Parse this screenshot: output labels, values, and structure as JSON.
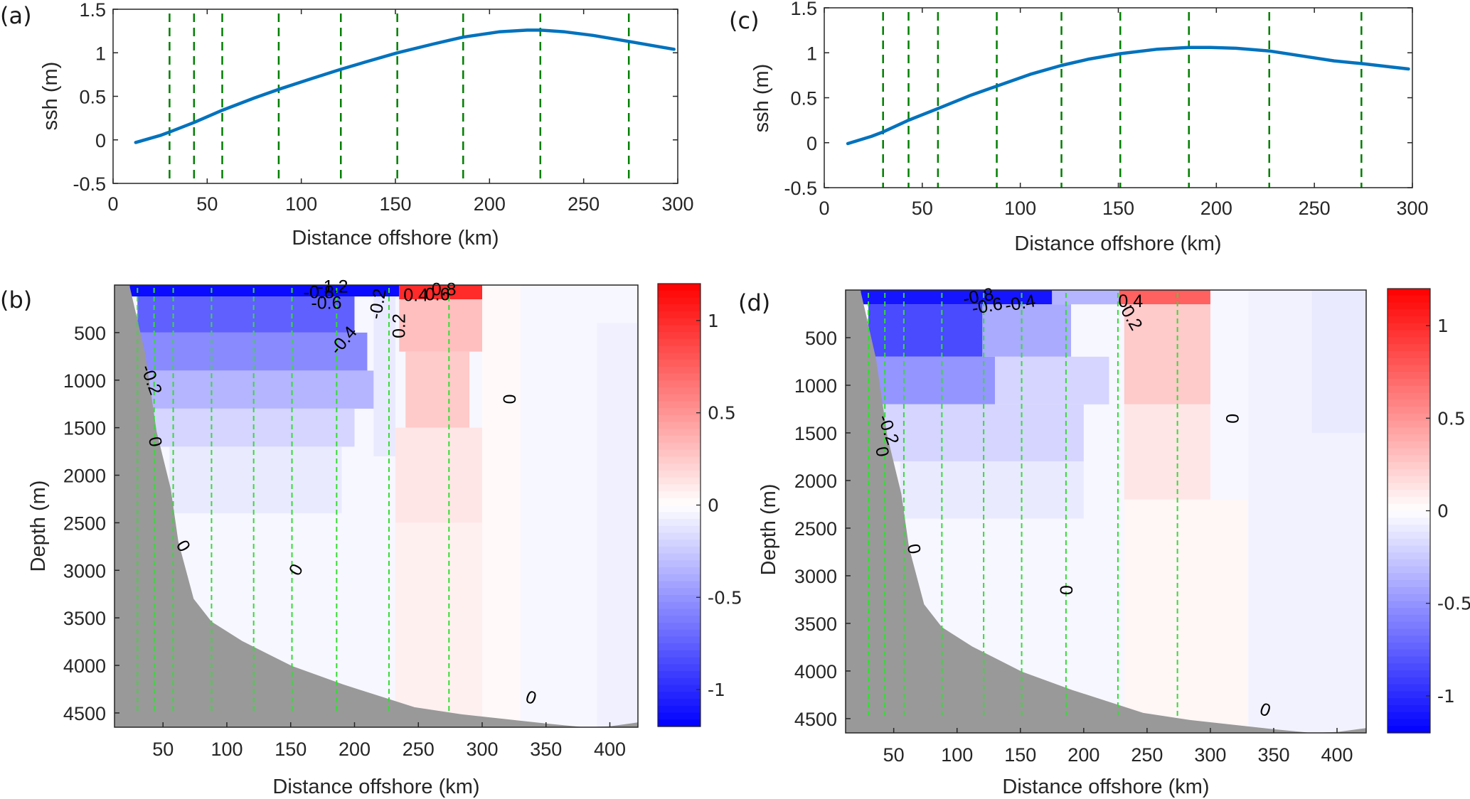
{
  "chart_data": [
    {
      "id": "a",
      "type": "line",
      "panel_label": "(a)",
      "xlabel": "Distance offshore (km)",
      "ylabel": "ssh (m)",
      "xlim": [
        0,
        300
      ],
      "ylim": [
        -0.5,
        1.5
      ],
      "xticks": [
        0,
        50,
        100,
        150,
        200,
        250,
        300
      ],
      "yticks": [
        -0.5,
        0,
        0.5,
        1,
        1.5
      ],
      "ytick_labels": [
        "-0.5",
        "0",
        "0.5",
        "1",
        "1.5"
      ],
      "grid": false,
      "series": [
        {
          "name": "ssh",
          "color": "#0072BD",
          "x": [
            12,
            25,
            30,
            43,
            58,
            75,
            88,
            105,
            121,
            135,
            151,
            170,
            186,
            205,
            220,
            227,
            240,
            255,
            274,
            290,
            298
          ],
          "y": [
            -0.03,
            0.05,
            0.09,
            0.2,
            0.34,
            0.48,
            0.58,
            0.7,
            0.81,
            0.9,
            1.0,
            1.1,
            1.18,
            1.24,
            1.26,
            1.26,
            1.24,
            1.2,
            1.13,
            1.07,
            1.04
          ]
        }
      ],
      "station_lines": {
        "color": "#007F00",
        "x": [
          30,
          43,
          58,
          88,
          121,
          151,
          186,
          227,
          274
        ]
      }
    },
    {
      "id": "c",
      "type": "line",
      "panel_label": "(c)",
      "xlabel": "Distance offshore (km)",
      "ylabel": "ssh (m)",
      "xlim": [
        0,
        300
      ],
      "ylim": [
        -0.5,
        1.5
      ],
      "xticks": [
        0,
        50,
        100,
        150,
        200,
        250,
        300
      ],
      "yticks": [
        -0.5,
        0,
        0.5,
        1,
        1.5
      ],
      "ytick_labels": [
        "-0.5",
        "0",
        "0.5",
        "1",
        "1.5"
      ],
      "grid": false,
      "series": [
        {
          "name": "ssh",
          "color": "#0072BD",
          "x": [
            12,
            24,
            30,
            43,
            58,
            75,
            88,
            105,
            121,
            135,
            151,
            170,
            186,
            197,
            210,
            227,
            245,
            260,
            274,
            290,
            298
          ],
          "y": [
            -0.01,
            0.07,
            0.12,
            0.25,
            0.38,
            0.53,
            0.63,
            0.76,
            0.86,
            0.93,
            0.99,
            1.04,
            1.06,
            1.06,
            1.05,
            1.02,
            0.96,
            0.91,
            0.88,
            0.84,
            0.82
          ]
        }
      ],
      "station_lines": {
        "color": "#007F00",
        "x": [
          30,
          43,
          58,
          88,
          121,
          151,
          186,
          227,
          274
        ]
      }
    },
    {
      "id": "b",
      "type": "heatmap",
      "panel_label": "(b)",
      "xlabel": "Distance offshore (km)",
      "ylabel": "Depth (m)",
      "xlim": [
        12,
        422
      ],
      "ylim": [
        0,
        4650
      ],
      "y_reversed": true,
      "xticks": [
        50,
        100,
        150,
        200,
        250,
        300,
        350,
        400
      ],
      "yticks": [
        500,
        1000,
        1500,
        2000,
        2500,
        3000,
        3500,
        4000,
        4500
      ],
      "colorbar": {
        "range": [
          -1.2,
          1.2
        ],
        "ticks": [
          1,
          0.5,
          0,
          -0.5,
          -1
        ],
        "tick_labels": [
          "1",
          "0.5",
          "0",
          "-0.5",
          "-1"
        ],
        "colormap": "blue-white-red"
      },
      "bathymetry": {
        "color": "#999999",
        "x": [
          12,
          24,
          36,
          45,
          56,
          62,
          74,
          88,
          112,
          151,
          191,
          247,
          284,
          349,
          380,
          400,
          422
        ],
        "depth": [
          20,
          20,
          717,
          1540,
          2140,
          2700,
          3300,
          3540,
          3743,
          4006,
          4200,
          4440,
          4515,
          4610,
          4650,
          4640,
          4600
        ]
      },
      "field_cells": [
        {
          "x0": 12,
          "x1": 235,
          "d0": 0,
          "d1": 120,
          "v": -1.15
        },
        {
          "x0": 30,
          "x1": 200,
          "d0": 120,
          "d1": 500,
          "v": -0.75
        },
        {
          "x0": 30,
          "x1": 210,
          "d0": 500,
          "d1": 900,
          "v": -0.55
        },
        {
          "x0": 30,
          "x1": 215,
          "d0": 900,
          "d1": 1300,
          "v": -0.35
        },
        {
          "x0": 40,
          "x1": 200,
          "d0": 1300,
          "d1": 1700,
          "v": -0.2
        },
        {
          "x0": 55,
          "x1": 190,
          "d0": 1700,
          "d1": 2400,
          "v": -0.1
        },
        {
          "x0": 55,
          "x1": 225,
          "d0": 2400,
          "d1": 4650,
          "v": -0.04
        },
        {
          "x0": 215,
          "x1": 232,
          "d0": 120,
          "d1": 1800,
          "v": -0.1
        },
        {
          "x0": 235,
          "x1": 320,
          "d0": 0,
          "d1": 150,
          "v": 1.0
        },
        {
          "x0": 235,
          "x1": 300,
          "d0": 150,
          "d1": 700,
          "v": 0.3
        },
        {
          "x0": 240,
          "x1": 290,
          "d0": 700,
          "d1": 1500,
          "v": 0.25
        },
        {
          "x0": 232,
          "x1": 300,
          "d0": 1500,
          "d1": 2500,
          "v": 0.12
        },
        {
          "x0": 232,
          "x1": 300,
          "d0": 2500,
          "d1": 4650,
          "v": 0.07
        },
        {
          "x0": 300,
          "x1": 330,
          "d0": 0,
          "d1": 4650,
          "v": 0.03
        },
        {
          "x0": 330,
          "x1": 422,
          "d0": 0,
          "d1": 4650,
          "v": -0.04
        },
        {
          "x0": 390,
          "x1": 422,
          "d0": 400,
          "d1": 4650,
          "v": -0.07
        }
      ],
      "contour_labels": [
        {
          "text": "-1.2",
          "x": 183,
          "depth": 30,
          "angle": 0
        },
        {
          "text": "-0.8",
          "x": 172,
          "depth": 90,
          "angle": 0
        },
        {
          "text": "-0.6",
          "x": 178,
          "depth": 200,
          "angle": 0
        },
        {
          "text": "-0.4",
          "x": 192,
          "depth": 590,
          "angle": -50
        },
        {
          "text": "-0.2",
          "x": 219,
          "depth": 200,
          "angle": -80
        },
        {
          "text": "-0.2",
          "x": 40,
          "depth": 1000,
          "angle": 70
        },
        {
          "text": "0.2",
          "x": 236,
          "depth": 430,
          "angle": -90
        },
        {
          "text": "0.4",
          "x": 248,
          "depth": 120,
          "angle": 0
        },
        {
          "text": "0.6",
          "x": 265,
          "depth": 110,
          "angle": 0
        },
        {
          "text": "0.8",
          "x": 270,
          "depth": 60,
          "angle": 0
        },
        {
          "text": "0",
          "x": 43,
          "depth": 1650,
          "angle": 80
        },
        {
          "text": "0",
          "x": 65,
          "depth": 2750,
          "angle": 60
        },
        {
          "text": "0",
          "x": 155,
          "depth": 3000,
          "angle": -60
        },
        {
          "text": "0",
          "x": 320,
          "depth": 1200,
          "angle": 90
        },
        {
          "text": "0",
          "x": 338,
          "depth": 4350,
          "angle": 20
        }
      ],
      "station_lines": {
        "color": "#33DD33",
        "x": [
          30,
          43,
          58,
          88,
          121,
          151,
          186,
          227,
          274
        ]
      }
    },
    {
      "id": "d",
      "type": "heatmap",
      "panel_label": "(d)",
      "xlabel": "Distance offshore (km)",
      "ylabel": "Depth (m)",
      "xlim": [
        12,
        423
      ],
      "ylim": [
        0,
        4650
      ],
      "y_reversed": true,
      "xticks": [
        50,
        100,
        150,
        200,
        250,
        300,
        350,
        400
      ],
      "yticks": [
        500,
        1000,
        1500,
        2000,
        2500,
        3000,
        3500,
        4000,
        4500
      ],
      "colorbar": {
        "range": [
          -1.2,
          1.2
        ],
        "ticks": [
          1,
          0.5,
          0,
          -0.5,
          -1
        ],
        "tick_labels": [
          "1",
          "0.5",
          "0",
          "-0.5",
          "-1"
        ],
        "colormap": "blue-white-red"
      },
      "bathymetry": {
        "color": "#999999",
        "x": [
          12,
          24,
          36,
          45,
          56,
          62,
          74,
          88,
          112,
          151,
          191,
          247,
          284,
          349,
          380,
          400,
          423
        ],
        "depth": [
          20,
          20,
          717,
          1540,
          2140,
          2700,
          3300,
          3540,
          3743,
          4006,
          4200,
          4440,
          4515,
          4610,
          4650,
          4640,
          4600
        ]
      },
      "field_cells": [
        {
          "x0": 12,
          "x1": 175,
          "d0": 0,
          "d1": 150,
          "v": -1.1
        },
        {
          "x0": 30,
          "x1": 120,
          "d0": 150,
          "d1": 700,
          "v": -0.85
        },
        {
          "x0": 120,
          "x1": 190,
          "d0": 150,
          "d1": 700,
          "v": -0.4
        },
        {
          "x0": 30,
          "x1": 130,
          "d0": 700,
          "d1": 1200,
          "v": -0.5
        },
        {
          "x0": 130,
          "x1": 220,
          "d0": 700,
          "d1": 1200,
          "v": -0.2
        },
        {
          "x0": 40,
          "x1": 200,
          "d0": 1200,
          "d1": 1800,
          "v": -0.2
        },
        {
          "x0": 55,
          "x1": 200,
          "d0": 1800,
          "d1": 2400,
          "v": -0.1
        },
        {
          "x0": 55,
          "x1": 230,
          "d0": 2400,
          "d1": 4650,
          "v": -0.04
        },
        {
          "x0": 175,
          "x1": 228,
          "d0": 0,
          "d1": 150,
          "v": -0.35
        },
        {
          "x0": 228,
          "x1": 300,
          "d0": 0,
          "d1": 150,
          "v": 0.75
        },
        {
          "x0": 232,
          "x1": 300,
          "d0": 150,
          "d1": 1200,
          "v": 0.25
        },
        {
          "x0": 232,
          "x1": 300,
          "d0": 1200,
          "d1": 2200,
          "v": 0.12
        },
        {
          "x0": 232,
          "x1": 330,
          "d0": 2200,
          "d1": 4650,
          "v": 0.04
        },
        {
          "x0": 330,
          "x1": 423,
          "d0": 0,
          "d1": 4650,
          "v": -0.06
        },
        {
          "x0": 380,
          "x1": 423,
          "d0": 0,
          "d1": 1500,
          "v": -0.1
        }
      ],
      "contour_labels": [
        {
          "text": "-0.8",
          "x": 117,
          "depth": 80,
          "angle": -10
        },
        {
          "text": "-0.6",
          "x": 124,
          "depth": 180,
          "angle": -10
        },
        {
          "text": "-0.4",
          "x": 150,
          "depth": 150,
          "angle": -10
        },
        {
          "text": "-0.2",
          "x": 45,
          "depth": 1470,
          "angle": 70
        },
        {
          "text": "0.4",
          "x": 237,
          "depth": 130,
          "angle": 0
        },
        {
          "text": "0.2",
          "x": 237,
          "depth": 300,
          "angle": 60
        },
        {
          "text": "0",
          "x": 40,
          "depth": 1700,
          "angle": 80
        },
        {
          "text": "0",
          "x": 65,
          "depth": 2720,
          "angle": 80
        },
        {
          "text": "0",
          "x": 185,
          "depth": 3150,
          "angle": 90
        },
        {
          "text": "0",
          "x": 316,
          "depth": 1350,
          "angle": 90
        },
        {
          "text": "0",
          "x": 343,
          "depth": 4420,
          "angle": 20
        }
      ],
      "station_lines": {
        "color": "#33DD33",
        "x": [
          30,
          43,
          58,
          88,
          121,
          151,
          186,
          227,
          274
        ]
      }
    }
  ]
}
